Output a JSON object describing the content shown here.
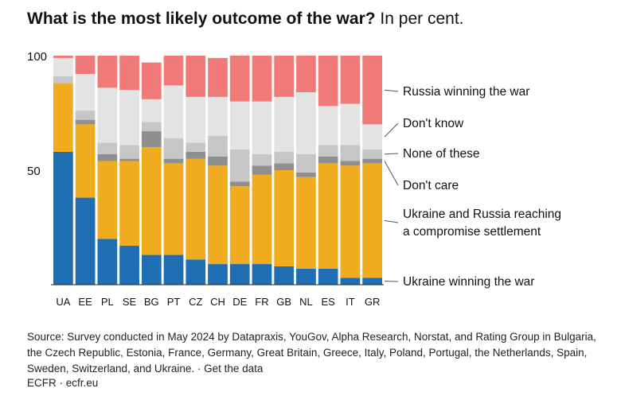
{
  "title_bold": "What is the most likely outcome of the war?",
  "title_rest": "In per cent.",
  "source": "Source: Survey conducted in May 2024 by Datapraxis, YouGov, Alpha Research, Norstat, and Rating Group in Bulgaria, the Czech Republic, Estonia, France, Germany, Great Britain, Greece, Italy, Poland, Portugal, the Netherlands, Spain, Sweden, Switzerland, and Ukraine. · Get the data",
  "credit": "ECFR · ecfr.eu",
  "chart_data": {
    "type": "bar",
    "stacked": true,
    "title": "What is the most likely outcome of the war? In per cent.",
    "ylim": [
      0,
      100
    ],
    "yticks": [
      50,
      100
    ],
    "ytick_labels": [
      "50",
      "100"
    ],
    "categories": [
      "UA",
      "EE",
      "PL",
      "SE",
      "BG",
      "PT",
      "CZ",
      "CH",
      "DE",
      "FR",
      "GB",
      "NL",
      "ES",
      "IT",
      "GR"
    ],
    "series": [
      {
        "name": "Ukraine winning the war",
        "color": "#1f6eb4",
        "values": [
          58,
          38,
          20,
          17,
          13,
          13,
          11,
          9,
          9,
          9,
          8,
          7,
          7,
          3,
          3
        ]
      },
      {
        "name": "Ukraine and Russia reaching a compromise settlement",
        "color": "#f0ac1e",
        "values": [
          30,
          32,
          34,
          37,
          47,
          40,
          44,
          43,
          34,
          39,
          42,
          40,
          46,
          49,
          50
        ]
      },
      {
        "name": "Don't care",
        "color": "#8f8f8f",
        "values": [
          0,
          2,
          3,
          1,
          7,
          2,
          3,
          4,
          2,
          4,
          3,
          2,
          3,
          2,
          2
        ]
      },
      {
        "name": "None of these",
        "color": "#c6c6c6",
        "values": [
          3,
          4,
          5,
          6,
          4,
          9,
          4,
          9,
          14,
          5,
          5,
          8,
          5,
          7,
          4
        ]
      },
      {
        "name": "Don't know",
        "color": "#e3e3e3",
        "values": [
          8,
          16,
          24,
          24,
          10,
          23,
          20,
          17,
          21,
          23,
          24,
          27,
          17,
          18,
          11
        ]
      },
      {
        "name": "Russia winning the war",
        "color": "#f07a77",
        "values": [
          1,
          8,
          14,
          15,
          16,
          13,
          18,
          17,
          20,
          20,
          18,
          16,
          22,
          21,
          30
        ]
      }
    ],
    "legend_order": [
      "Russia winning the war",
      "Don't know",
      "None of these",
      "Don't care",
      "Ukraine and Russia reaching a compromise settlement",
      "Ukraine winning the war"
    ],
    "legend_placement": "right",
    "legend_lines": {
      "Russia winning the war": [
        "Russia winning the war"
      ],
      "Don't know": [
        "Don't know"
      ],
      "None of these": [
        "None of these"
      ],
      "Don't care": [
        "Don't care"
      ],
      "Ukraine and Russia reaching a compromise settlement": [
        "Ukraine and Russia reaching",
        "a compromise settlement"
      ],
      "Ukraine winning the war": [
        "Ukraine winning the war"
      ]
    }
  }
}
